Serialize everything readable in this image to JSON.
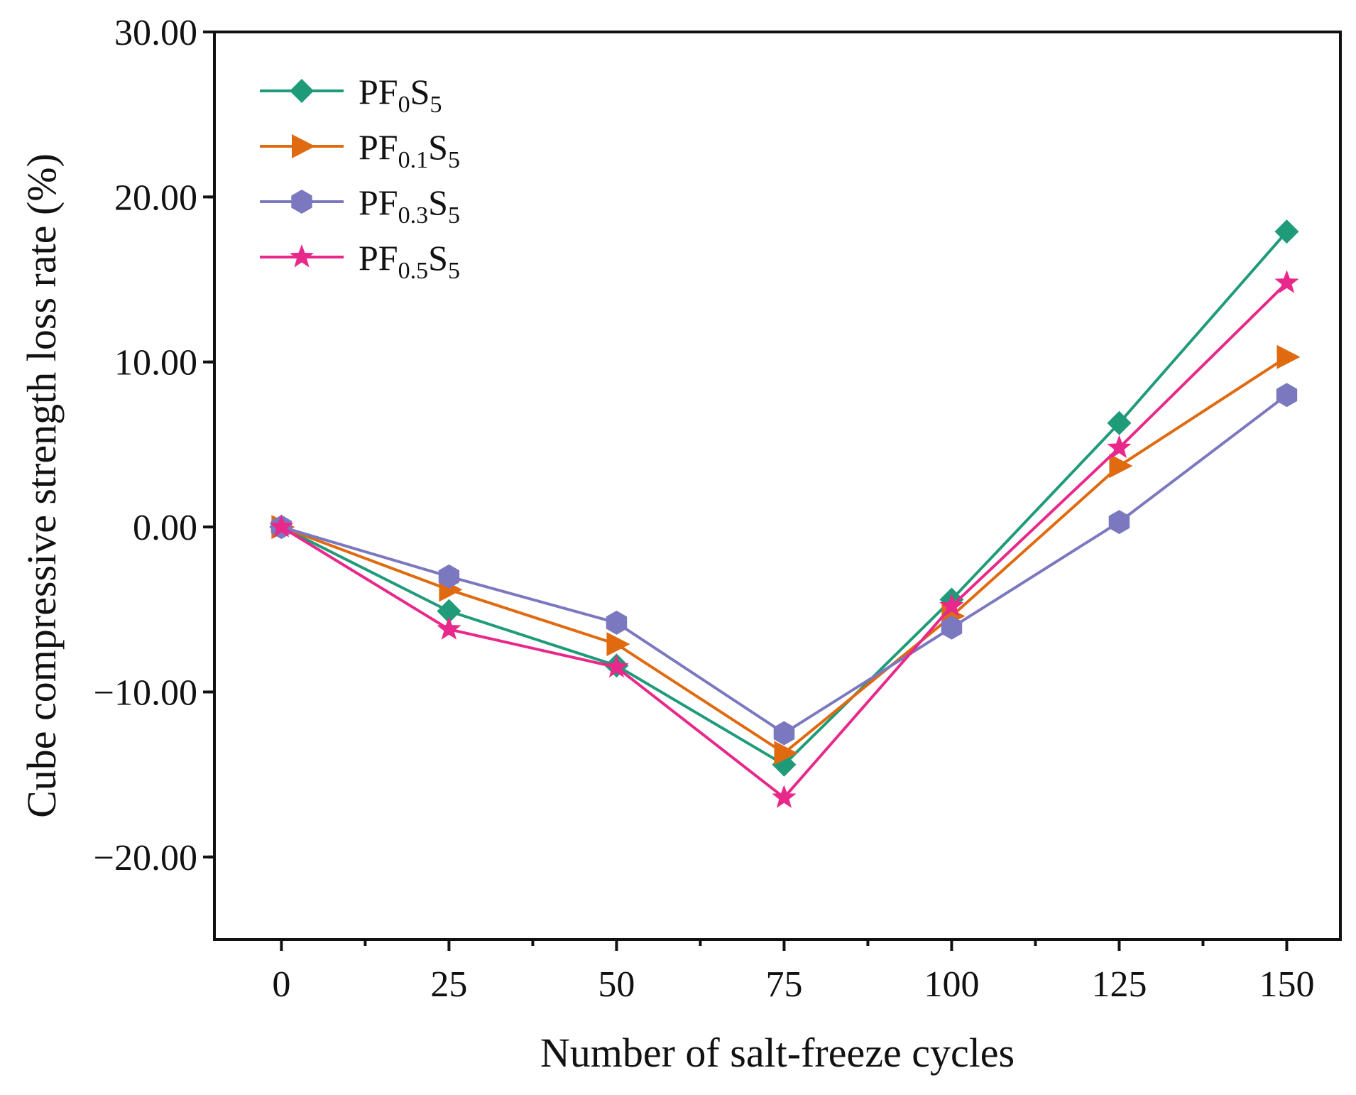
{
  "chart_data": {
    "type": "line",
    "title": "",
    "xlabel": "Number of salt-freeze cycles",
    "ylabel": "Cube compressive strength loss rate (%)",
    "x": [
      0,
      25,
      50,
      75,
      100,
      125,
      150
    ],
    "xlim": [
      -10,
      158
    ],
    "ylim": [
      -25,
      30
    ],
    "xticks": [
      "0",
      "25",
      "50",
      "75",
      "100",
      "125",
      "150"
    ],
    "yticks": [
      {
        "value": 30,
        "label": "30.00"
      },
      {
        "value": 20,
        "label": "20.00"
      },
      {
        "value": 10,
        "label": "10.00"
      },
      {
        "value": 0,
        "label": "0.00"
      },
      {
        "value": -10,
        "label": "−10.00"
      },
      {
        "value": -20,
        "label": "−20.00"
      }
    ],
    "grid": false,
    "legend_position": "top-left",
    "series": [
      {
        "name": "PF0S5",
        "base": "PF",
        "sub1": "0",
        "mid": "S",
        "sub2": "5",
        "color": "#1f9b7a",
        "marker": "diamond",
        "values": [
          0,
          -5.1,
          -8.4,
          -14.4,
          -4.4,
          6.3,
          17.9
        ]
      },
      {
        "name": "PF0.1S5",
        "base": "PF",
        "sub1": "0.1",
        "mid": "S",
        "sub2": "5",
        "color": "#e06a10",
        "marker": "triangle-right",
        "values": [
          0,
          -3.8,
          -7.1,
          -13.7,
          -5.4,
          3.7,
          10.3
        ]
      },
      {
        "name": "PF0.3S5",
        "base": "PF",
        "sub1": "0.3",
        "mid": "S",
        "sub2": "5",
        "color": "#7b78c0",
        "marker": "hexagon",
        "values": [
          0,
          -3.0,
          -5.8,
          -12.5,
          -6.1,
          0.3,
          8.0
        ]
      },
      {
        "name": "PF0.5S5",
        "base": "PF",
        "sub1": "0.5",
        "mid": "S",
        "sub2": "5",
        "color": "#e8288a",
        "marker": "star",
        "values": [
          0,
          -6.2,
          -8.5,
          -16.4,
          -4.8,
          4.8,
          14.8
        ]
      }
    ]
  }
}
